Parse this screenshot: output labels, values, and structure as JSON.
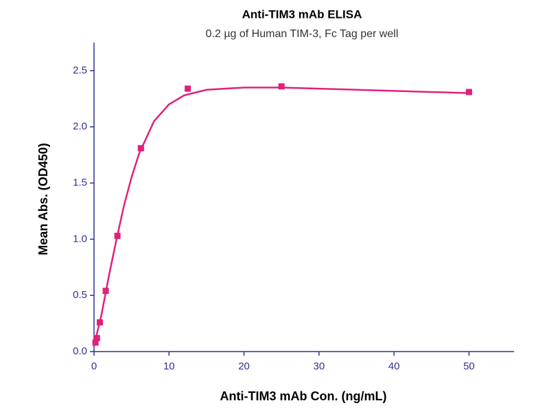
{
  "chart_data": {
    "type": "scatter",
    "title": "Anti-TIM3 mAb ELISA",
    "subtitle": "0.2 µg of Human TIM-3, Fc Tag per well",
    "x_label": "Anti-TIM3 mAb Con. (ng/mL)",
    "y_label": "Mean Abs. (OD450)",
    "series": [
      {
        "color": "#e0207a",
        "x": [
          0.195,
          0.39,
          0.78,
          1.5625,
          3.125,
          6.25,
          12.5,
          25,
          50
        ],
        "values": [
          0.08,
          0.12,
          0.26,
          0.54,
          1.03,
          1.81,
          2.34,
          2.36,
          2.31
        ]
      }
    ],
    "fit": {
      "color": "#e0207a",
      "x": [
        0,
        1,
        2,
        3,
        4,
        5,
        6,
        8,
        10,
        12,
        15,
        20,
        25,
        30,
        40,
        50
      ],
      "values": [
        0.05,
        0.33,
        0.68,
        1.0,
        1.3,
        1.55,
        1.76,
        2.05,
        2.2,
        2.28,
        2.33,
        2.35,
        2.35,
        2.34,
        2.32,
        2.3
      ]
    },
    "xlim": [
      0,
      56
    ],
    "ylim": [
      0,
      2.75
    ],
    "xticks": [
      0,
      10,
      20,
      30,
      40,
      50
    ],
    "yticks": [
      {
        "value": 0,
        "label": "0.0"
      },
      {
        "value": 0.5,
        "label": "0.5"
      },
      {
        "value": 1,
        "label": "1.0"
      },
      {
        "value": 1.5,
        "label": "1.5"
      },
      {
        "value": 2,
        "label": "2.0"
      },
      {
        "value": 2.5,
        "label": "2.5"
      }
    ],
    "axis_color": "#2e3192"
  }
}
